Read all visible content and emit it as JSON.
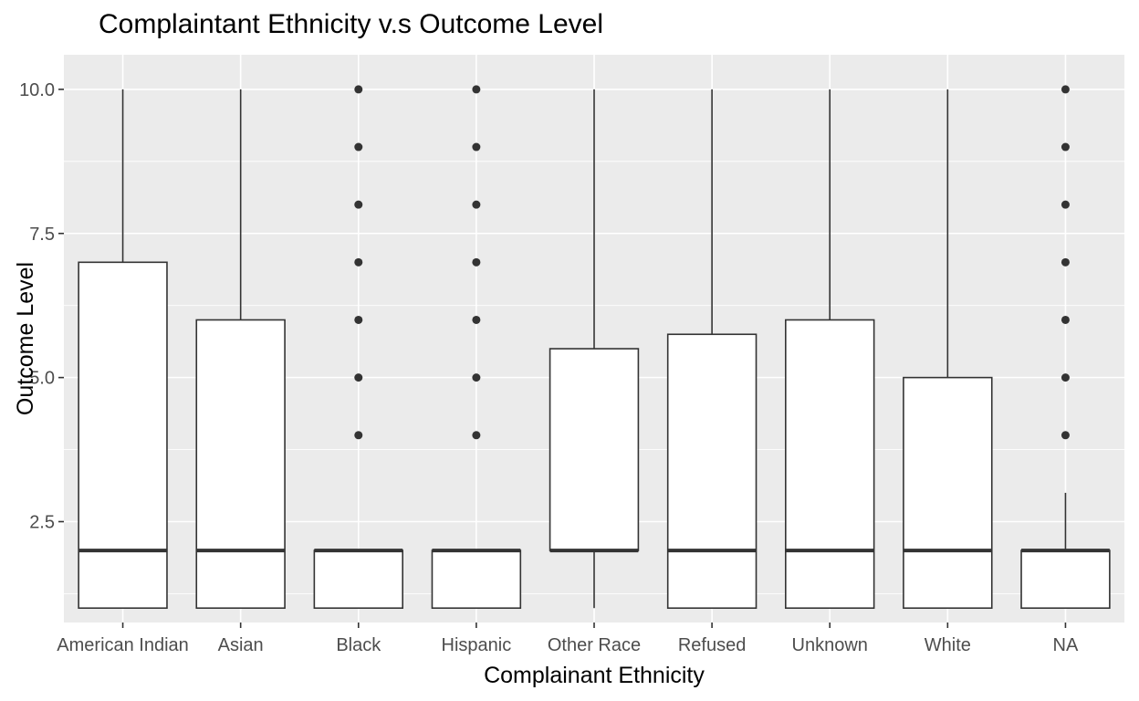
{
  "chart_data": {
    "type": "boxplot",
    "title": "Complaintant Ethnicity v.s Outcome Level",
    "xlabel": "Complainant Ethnicity",
    "ylabel": "Outcome Level",
    "ylim": [
      0.75,
      10.6
    ],
    "yticks": [
      2.5,
      5.0,
      7.5,
      10.0
    ],
    "ytick_labels": [
      "2.5",
      "5.0",
      "7.5",
      "10.0"
    ],
    "grid": true,
    "categories": [
      "American Indian",
      "Asian",
      "Black",
      "Hispanic",
      "Other Race",
      "Refused",
      "Unknown",
      "White",
      "NA"
    ],
    "boxes": [
      {
        "category": "American Indian",
        "whisker_low": 1,
        "q1": 1,
        "median": 2,
        "q3": 7,
        "whisker_high": 10,
        "outliers": []
      },
      {
        "category": "Asian",
        "whisker_low": 1,
        "q1": 1,
        "median": 2,
        "q3": 6,
        "whisker_high": 10,
        "outliers": []
      },
      {
        "category": "Black",
        "whisker_low": 1,
        "q1": 1,
        "median": 2,
        "q3": 2,
        "whisker_high": 2,
        "outliers": [
          4,
          5,
          6,
          7,
          8,
          9,
          10
        ]
      },
      {
        "category": "Hispanic",
        "whisker_low": 1,
        "q1": 1,
        "median": 2,
        "q3": 2,
        "whisker_high": 2,
        "outliers": [
          4,
          5,
          6,
          7,
          8,
          9,
          10
        ]
      },
      {
        "category": "Other Race",
        "whisker_low": 1,
        "q1": 2,
        "median": 2,
        "q3": 5.5,
        "whisker_high": 10,
        "outliers": []
      },
      {
        "category": "Refused",
        "whisker_low": 1,
        "q1": 1,
        "median": 2,
        "q3": 5.75,
        "whisker_high": 10,
        "outliers": []
      },
      {
        "category": "Unknown",
        "whisker_low": 1,
        "q1": 1,
        "median": 2,
        "q3": 6,
        "whisker_high": 10,
        "outliers": []
      },
      {
        "category": "White",
        "whisker_low": 1,
        "q1": 1,
        "median": 2,
        "q3": 5,
        "whisker_high": 10,
        "outliers": []
      },
      {
        "category": "NA",
        "whisker_low": 1,
        "q1": 1,
        "median": 2,
        "q3": 2,
        "whisker_high": 3,
        "outliers": [
          4,
          5,
          6,
          7,
          8,
          9,
          10
        ]
      }
    ],
    "colors": {
      "panel_background": "#ebebeb",
      "grid_major": "#ffffff",
      "box_fill": "#ffffff",
      "box_stroke": "#333333",
      "outlier": "#333333"
    }
  }
}
